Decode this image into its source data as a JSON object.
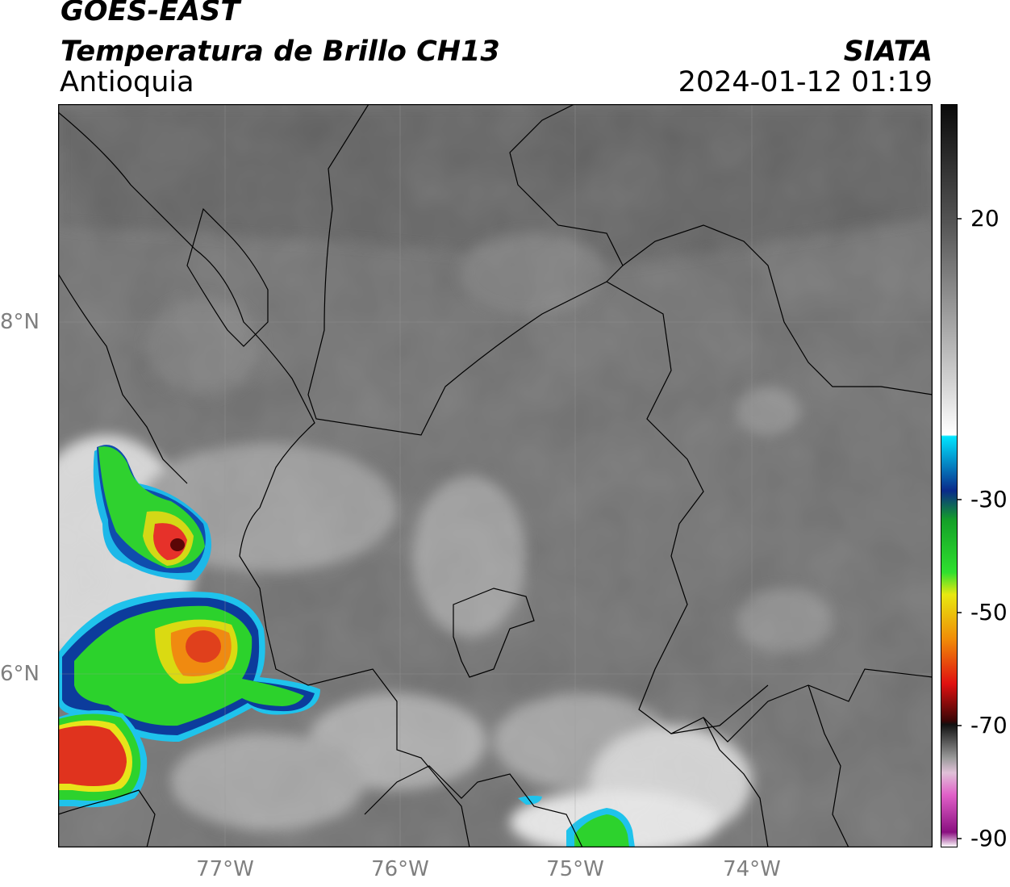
{
  "header": {
    "satellite": "GOES-EAST",
    "product": "Temperatura de Brillo CH13",
    "region": "Antioquia",
    "organization": "SIATA",
    "timestamp": "2024-01-12 01:19"
  },
  "axes": {
    "lat_labels": [
      "8°N",
      "6°N"
    ],
    "lon_labels": [
      "77°W",
      "76°W",
      "75°W",
      "74°W"
    ]
  },
  "colorbar": {
    "ticks": [
      "20",
      "-30",
      "-50",
      "-70",
      "-90"
    ]
  },
  "colors": {
    "background_gray": "#6e6e6e",
    "cold_green": "#1fd21f",
    "cold_red": "#d81c10",
    "cold_blue": "#0a3da6",
    "cyan": "#18c8ee"
  }
}
